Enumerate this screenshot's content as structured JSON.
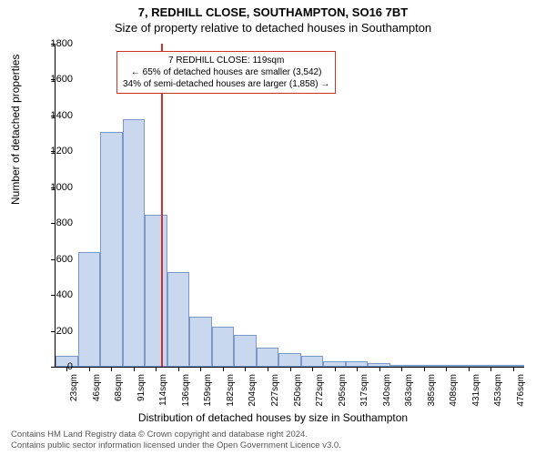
{
  "title_main": "7, REDHILL CLOSE, SOUTHAMPTON, SO16 7BT",
  "title_sub": "Size of property relative to detached houses in Southampton",
  "ylabel": "Number of detached properties",
  "xlabel": "Distribution of detached houses by size in Southampton",
  "chart": {
    "type": "histogram",
    "background_color": "#ffffff",
    "bar_fill": "#c9d8ee",
    "bar_border": "#7a99c9",
    "refline_color": "#d03030",
    "annotation_border": "#d03030",
    "y_axis": {
      "min": 0,
      "max": 1800,
      "tick_step": 200
    },
    "x_categories": [
      "23sqm",
      "46sqm",
      "68sqm",
      "91sqm",
      "114sqm",
      "136sqm",
      "159sqm",
      "182sqm",
      "204sqm",
      "227sqm",
      "250sqm",
      "272sqm",
      "295sqm",
      "317sqm",
      "340sqm",
      "363sqm",
      "385sqm",
      "408sqm",
      "431sqm",
      "453sqm",
      "476sqm"
    ],
    "values": [
      60,
      640,
      1310,
      1380,
      845,
      525,
      280,
      225,
      180,
      105,
      75,
      60,
      30,
      30,
      20,
      12,
      10,
      0,
      0,
      0,
      0
    ],
    "reference_value_sqm": 119,
    "annotation": {
      "line1": "7 REDHILL CLOSE: 119sqm",
      "line2": "← 65% of detached houses are smaller (3,542)",
      "line3": "34% of semi-detached houses are larger (1,858) →"
    }
  },
  "footer": {
    "line1": "Contains HM Land Registry data © Crown copyright and database right 2024.",
    "line2": "Contains public sector information licensed under the Open Government Licence v3.0."
  }
}
